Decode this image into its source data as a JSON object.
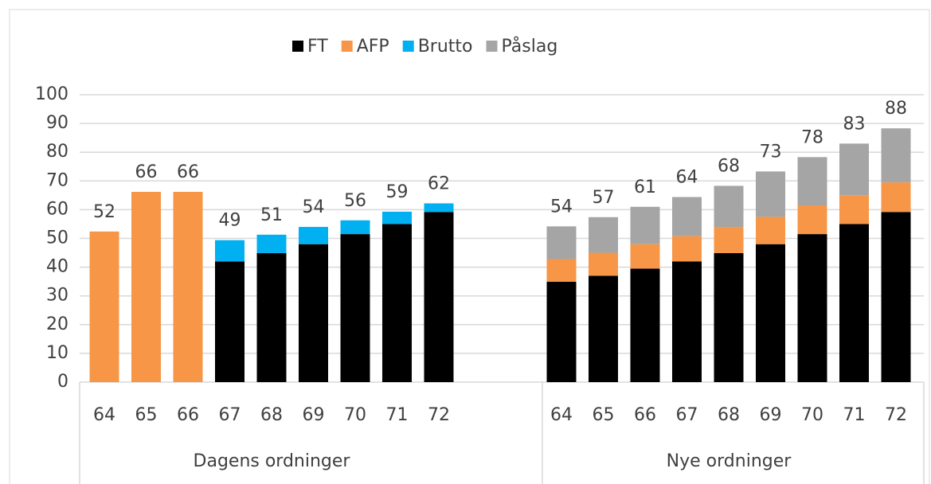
{
  "chart_data": {
    "type": "stacked-bar",
    "categories": [
      "64",
      "65",
      "66",
      "67",
      "68",
      "69",
      "70",
      "71",
      "72",
      "64",
      "65",
      "66",
      "67",
      "68",
      "69",
      "70",
      "71",
      "72"
    ],
    "groups": [
      "Dagens ordninger",
      "Nye ordninger"
    ],
    "series": [
      {
        "name": "FT",
        "color": "#000000",
        "values": [
          null,
          null,
          null,
          42,
          44.9,
          48,
          51.5,
          55,
          59.2,
          34.9,
          37,
          39.5,
          42,
          44.9,
          48,
          51.5,
          55,
          59.2
        ]
      },
      {
        "name": "AFP",
        "color": "#f79646",
        "values": [
          52.4,
          66.2,
          66.2,
          null,
          null,
          null,
          null,
          null,
          null,
          7.9,
          8,
          8.5,
          8.8,
          9.1,
          9.5,
          10,
          10,
          10.3
        ]
      },
      {
        "name": "Brutto",
        "color": "#00b0f0",
        "values": [
          null,
          null,
          null,
          7.4,
          6.4,
          6,
          4.8,
          4.3,
          3,
          null,
          null,
          null,
          null,
          null,
          null,
          null,
          null,
          null
        ]
      },
      {
        "name": "Påslag",
        "color": "#a5a5a5",
        "values": [
          null,
          null,
          null,
          null,
          null,
          null,
          null,
          null,
          null,
          11.4,
          12.4,
          13,
          13.6,
          14.3,
          15.8,
          16.8,
          18,
          18.8
        ]
      }
    ],
    "totals": [
      52,
      66,
      66,
      49,
      51,
      54,
      56,
      59,
      62,
      54,
      57,
      61,
      64,
      68,
      73,
      78,
      83,
      88
    ],
    "ylim": [
      0,
      100
    ],
    "yticks": [
      0,
      10,
      20,
      30,
      40,
      50,
      60,
      70,
      80,
      90,
      100
    ],
    "grid": true,
    "legend": "top"
  }
}
